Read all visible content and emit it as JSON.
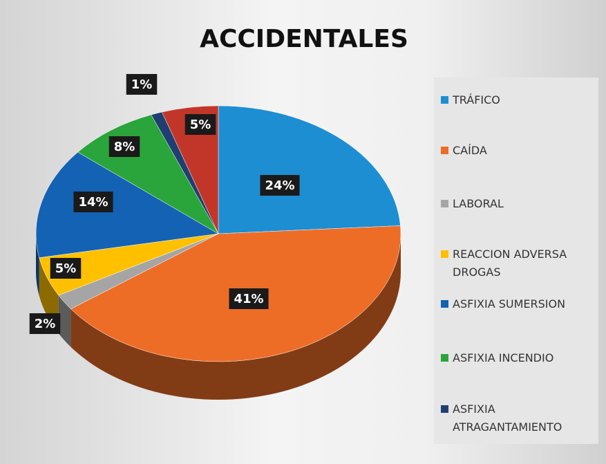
{
  "chart_data": {
    "type": "pie",
    "title": "ACCIDENTALES",
    "categories": [
      "TRÁFICO",
      "CAÍDA",
      "LABORAL",
      "REACCION ADVERSA DROGAS",
      "ASFIXIA SUMERSION",
      "ASFIXIA INCENDIO",
      "ASFIXIA ATRAGANTAMIENTO",
      null
    ],
    "values": [
      24,
      41,
      2,
      5,
      14,
      8,
      1,
      5
    ],
    "value_labels": [
      "24%",
      "41%",
      "2%",
      "5%",
      "14%",
      "8%",
      "1%",
      "5%"
    ],
    "colors": [
      "#1e8ed2",
      "#ed6d27",
      "#a5a5a5",
      "#ffc000",
      "#1462b3",
      "#2aa53b",
      "#1f3f72",
      "#c2362a"
    ],
    "legend": "right"
  }
}
